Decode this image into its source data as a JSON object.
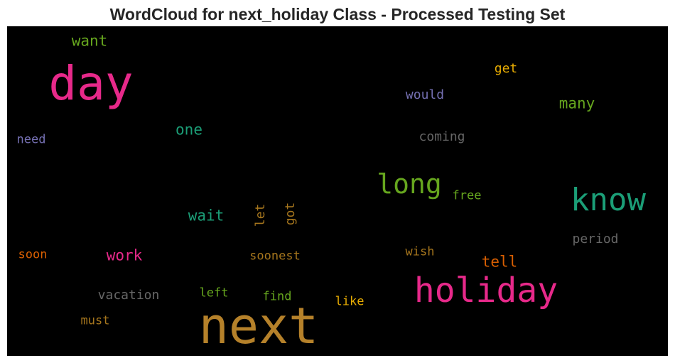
{
  "title": "WordCloud for next_holiday Class - Processed Testing Set",
  "words": [
    {
      "text": "next",
      "color": "#b5812a",
      "weight": 1.0
    },
    {
      "text": "holiday",
      "color": "#e7298a",
      "weight": 0.62
    },
    {
      "text": "day",
      "color": "#e7298a",
      "weight": 0.62
    },
    {
      "text": "know",
      "color": "#1b9e77",
      "weight": 0.42
    },
    {
      "text": "long",
      "color": "#66a61e",
      "weight": 0.4
    },
    {
      "text": "want",
      "color": "#66a61e",
      "weight": 0.22
    },
    {
      "text": "many",
      "color": "#66a61e",
      "weight": 0.22
    },
    {
      "text": "one",
      "color": "#1b9e77",
      "weight": 0.22
    },
    {
      "text": "wait",
      "color": "#1b9e77",
      "weight": 0.22
    },
    {
      "text": "work",
      "color": "#e7298a",
      "weight": 0.22
    },
    {
      "text": "tell",
      "color": "#d95f02",
      "weight": 0.22
    },
    {
      "text": "get",
      "color": "#e6ab02",
      "weight": 0.18
    },
    {
      "text": "would",
      "color": "#7570b3",
      "weight": 0.18
    },
    {
      "text": "coming",
      "color": "#666666",
      "weight": 0.18
    },
    {
      "text": "need",
      "color": "#7570b3",
      "weight": 0.16
    },
    {
      "text": "free",
      "color": "#66a61e",
      "weight": 0.16
    },
    {
      "text": "let",
      "color": "#a6761d",
      "weight": 0.18,
      "vertical": true
    },
    {
      "text": "got",
      "color": "#a6761d",
      "weight": 0.18,
      "vertical": true
    },
    {
      "text": "period",
      "color": "#666666",
      "weight": 0.18
    },
    {
      "text": "soon",
      "color": "#d95f02",
      "weight": 0.16
    },
    {
      "text": "soonest",
      "color": "#a6761d",
      "weight": 0.16
    },
    {
      "text": "wish",
      "color": "#a6761d",
      "weight": 0.16
    },
    {
      "text": "vacation",
      "color": "#666666",
      "weight": 0.18
    },
    {
      "text": "left",
      "color": "#66a61e",
      "weight": 0.16
    },
    {
      "text": "find",
      "color": "#66a61e",
      "weight": 0.16
    },
    {
      "text": "like",
      "color": "#e6ab02",
      "weight": 0.16
    },
    {
      "text": "must",
      "color": "#a6761d",
      "weight": 0.16
    }
  ]
}
